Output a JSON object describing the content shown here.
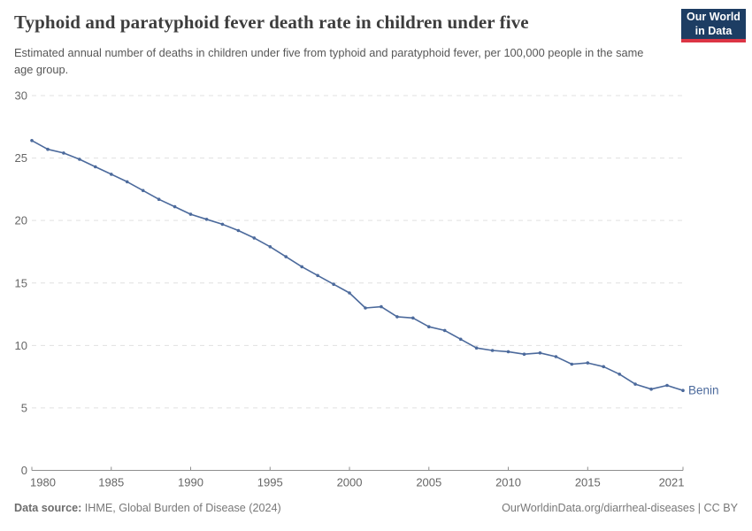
{
  "header": {
    "title": "Typhoid and paratyphoid fever death rate in children under five",
    "subtitle": "Estimated annual number of deaths in children under five from typhoid and paratyphoid fever, per 100,000 people in the same age group.",
    "logo": {
      "line1": "Our World",
      "line2": "in Data",
      "bg_color": "#1d3d63",
      "stripe_color": "#dc3545"
    }
  },
  "footer": {
    "data_source_label": "Data source:",
    "data_source_value": " IHME, Global Burden of Disease (2024)",
    "license": "OurWorldinData.org/diarrheal-diseases | CC BY"
  },
  "chart_data": {
    "type": "line",
    "title": "Typhoid and paratyphoid fever death rate in children under five",
    "xlabel": "",
    "ylabel": "",
    "xlim": [
      1980,
      2021
    ],
    "ylim": [
      0,
      30
    ],
    "xticks": [
      1980,
      1985,
      1990,
      1995,
      2000,
      2005,
      2010,
      2015,
      2021
    ],
    "yticks": [
      0,
      5,
      10,
      15,
      20,
      25,
      30
    ],
    "grid": "horizontal-dashed",
    "legend_position": "end-of-line-label",
    "x": [
      1980,
      1981,
      1982,
      1983,
      1984,
      1985,
      1986,
      1987,
      1988,
      1989,
      1990,
      1991,
      1992,
      1993,
      1994,
      1995,
      1996,
      1997,
      1998,
      1999,
      2000,
      2001,
      2002,
      2003,
      2004,
      2005,
      2006,
      2007,
      2008,
      2009,
      2010,
      2011,
      2012,
      2013,
      2014,
      2015,
      2016,
      2017,
      2018,
      2019,
      2020,
      2021
    ],
    "series": [
      {
        "name": "Benin",
        "color": "#4c6a9c",
        "values": [
          26.4,
          25.7,
          25.4,
          24.9,
          24.3,
          23.7,
          23.1,
          22.4,
          21.7,
          21.1,
          20.5,
          20.1,
          19.7,
          19.2,
          18.6,
          17.9,
          17.1,
          16.3,
          15.6,
          14.9,
          14.2,
          13.0,
          13.1,
          12.3,
          12.2,
          11.5,
          11.2,
          10.5,
          9.8,
          9.6,
          9.5,
          9.3,
          9.4,
          9.1,
          8.5,
          8.6,
          8.3,
          7.7,
          6.9,
          6.5,
          6.8,
          6.4
        ]
      }
    ],
    "colors": {
      "grid": "#e0e0e0",
      "axis": "#8f8f8f",
      "tick_label": "#666666"
    }
  }
}
